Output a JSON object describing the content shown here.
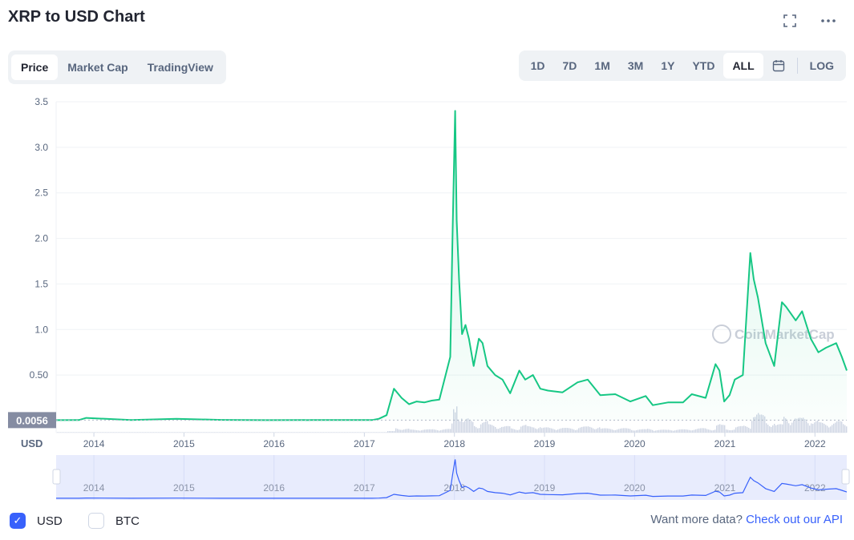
{
  "title": "XRP to USD Chart",
  "icons": {
    "fullscreen": "fullscreen-icon",
    "more": "more-icon",
    "calendar": "calendar-icon"
  },
  "view_tabs": [
    "Price",
    "Market Cap",
    "TradingView"
  ],
  "active_view": "Price",
  "ranges": [
    "1D",
    "7D",
    "1M",
    "3M",
    "1Y",
    "YTD",
    "ALL"
  ],
  "active_range": "ALL",
  "log_label": "LOG",
  "colors": {
    "line": "#16c784",
    "accent": "#3861fb",
    "volume": "#cfd6e4",
    "navigator_bg": "#e8ecfd"
  },
  "chart_data": {
    "type": "area",
    "y_ticks": [
      "0.50",
      "1.0",
      "1.5",
      "2.0",
      "2.5",
      "3.0",
      "3.5"
    ],
    "x_ticks": [
      "2014",
      "2015",
      "2016",
      "2017",
      "2018",
      "2019",
      "2020",
      "2021",
      "2022"
    ],
    "ylim": [
      0,
      3.5
    ],
    "axis_unit": "USD",
    "start_value_label": "0.0056",
    "watermark": "CoinMarketCap",
    "grid": true,
    "series": [
      {
        "name": "USD",
        "x": [
          "2013-08",
          "2013-11",
          "2013-12",
          "2014-06",
          "2014-12",
          "2015-06",
          "2015-12",
          "2016-06",
          "2016-12",
          "2017-02",
          "2017-03",
          "2017-04",
          "2017-05",
          "2017-06",
          "2017-07",
          "2017-08",
          "2017-09",
          "2017-10",
          "2017-11",
          "2017-12-15",
          "2017-12-25",
          "2018-01-04",
          "2018-01-10",
          "2018-01-20",
          "2018-02-01",
          "2018-02-15",
          "2018-03-01",
          "2018-03-20",
          "2018-04-10",
          "2018-04-25",
          "2018-05-15",
          "2018-06-15",
          "2018-07-15",
          "2018-08-15",
          "2018-09-21",
          "2018-10-15",
          "2018-11-15",
          "2018-12-15",
          "2019-01-15",
          "2019-03-15",
          "2019-05-15",
          "2019-06-25",
          "2019-08-15",
          "2019-10-15",
          "2019-12-15",
          "2020-02-15",
          "2020-03-15",
          "2020-05-15",
          "2020-07-15",
          "2020-08-20",
          "2020-10-15",
          "2020-11-24",
          "2020-12-10",
          "2020-12-29",
          "2021-01-20",
          "2021-02-10",
          "2021-03-15",
          "2021-04-14",
          "2021-04-28",
          "2021-05-15",
          "2021-06-15",
          "2021-07-20",
          "2021-08-20",
          "2021-09-06",
          "2021-10-15",
          "2021-11-10",
          "2021-12-15",
          "2022-01-15",
          "2022-02-15",
          "2022-03-28",
          "2022-04-20",
          "2022-05-10"
        ],
        "values": [
          0.0056,
          0.006,
          0.03,
          0.006,
          0.02,
          0.008,
          0.005,
          0.006,
          0.007,
          0.006,
          0.02,
          0.06,
          0.35,
          0.25,
          0.18,
          0.21,
          0.2,
          0.22,
          0.23,
          0.7,
          2.1,
          3.4,
          2.2,
          1.55,
          0.95,
          1.05,
          0.9,
          0.6,
          0.9,
          0.85,
          0.6,
          0.5,
          0.45,
          0.3,
          0.55,
          0.45,
          0.5,
          0.35,
          0.33,
          0.31,
          0.42,
          0.45,
          0.28,
          0.29,
          0.21,
          0.27,
          0.17,
          0.2,
          0.2,
          0.29,
          0.25,
          0.62,
          0.55,
          0.21,
          0.28,
          0.45,
          0.5,
          1.84,
          1.55,
          1.35,
          0.85,
          0.6,
          1.3,
          1.25,
          1.1,
          1.2,
          0.9,
          0.75,
          0.8,
          0.85,
          0.7,
          0.55
        ]
      }
    ]
  },
  "footer": {
    "usd_label": "USD",
    "btc_label": "BTC",
    "more_data_text": "Want more data?",
    "api_link": "Check out our API"
  }
}
